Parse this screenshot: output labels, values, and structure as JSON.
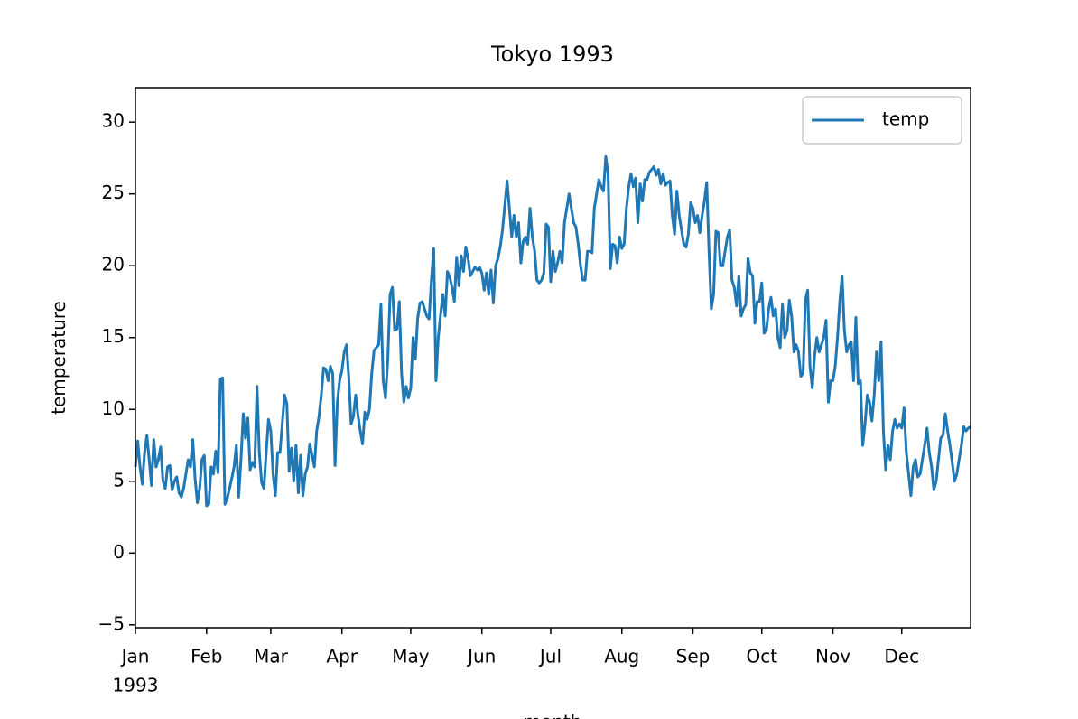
{
  "chart_data": {
    "type": "line",
    "title": "Tokyo 1993",
    "xlabel": "month",
    "ylabel": "temperature",
    "x_year_label": "1993",
    "xlim": [
      0,
      364
    ],
    "xticks": [
      {
        "value": 0,
        "label": "Jan"
      },
      {
        "value": 31,
        "label": "Feb"
      },
      {
        "value": 59,
        "label": "Mar"
      },
      {
        "value": 90,
        "label": "Apr"
      },
      {
        "value": 120,
        "label": "May"
      },
      {
        "value": 151,
        "label": "Jun"
      },
      {
        "value": 181,
        "label": "Jul"
      },
      {
        "value": 212,
        "label": "Aug"
      },
      {
        "value": 243,
        "label": "Sep"
      },
      {
        "value": 273,
        "label": "Oct"
      },
      {
        "value": 304,
        "label": "Nov"
      },
      {
        "value": 334,
        "label": "Dec"
      }
    ],
    "ylim": [
      -5.2,
      32.4
    ],
    "yticks": [
      {
        "value": -5,
        "label": "−5"
      },
      0,
      5,
      10,
      15,
      20,
      25,
      30
    ],
    "grid": false,
    "legend": "upper right",
    "series": [
      {
        "name": "temp",
        "color": "#1f77b4",
        "values": [
          6,
          7.8,
          6,
          4.8,
          7,
          8.2,
          6.5,
          4.7,
          7.9,
          6,
          6.5,
          7.4,
          5,
          4.5,
          6,
          6.1,
          4.4,
          5,
          5.3,
          4.2,
          3.9,
          4.5,
          5.5,
          6.5,
          6,
          7.9,
          5.2,
          3.5,
          4.5,
          6.5,
          6.8,
          3.3,
          3.4,
          6,
          5.5,
          7.1,
          5.6,
          12.1,
          12.2,
          3.4,
          3.8,
          4.5,
          5.2,
          6,
          7.5,
          3.9,
          6.5,
          9.7,
          8,
          9.4,
          5.8,
          6.3,
          6,
          11.6,
          7,
          4.9,
          4.5,
          7,
          9.3,
          8.5,
          5.5,
          4,
          7,
          7,
          9,
          11,
          10.4,
          5.7,
          7.3,
          5,
          7.5,
          4.2,
          6.8,
          4,
          5.5,
          6,
          7.6,
          6.8,
          6,
          8.5,
          9.5,
          11,
          12.9,
          12.8,
          12,
          13,
          12.5,
          6.1,
          10.5,
          12,
          12.7,
          14,
          14.5,
          12.2,
          9,
          9.5,
          11,
          9.6,
          8.5,
          7.6,
          9.8,
          9.3,
          10,
          12.5,
          14.1,
          14.3,
          14.5,
          17.3,
          12,
          10.8,
          13.5,
          18,
          18.5,
          15.5,
          15.6,
          17.5,
          12.5,
          10.5,
          11.6,
          10.8,
          11.5,
          15,
          13.5,
          16.3,
          17.4,
          17.5,
          17,
          16.5,
          16.3,
          19,
          21.2,
          12,
          15,
          16.6,
          18,
          16.5,
          19.6,
          19.2,
          18.5,
          17.5,
          20.6,
          18.6,
          20.7,
          19.6,
          21.3,
          20.5,
          19.3,
          19.6,
          19.9,
          19.7,
          19.9,
          19.5,
          18.3,
          19.5,
          18,
          19.7,
          17.4,
          20,
          20.5,
          21.3,
          22.5,
          24.2,
          25.9,
          24,
          22,
          23.5,
          22,
          23,
          20.2,
          21.7,
          22,
          21.5,
          24,
          22,
          21,
          19,
          18.8,
          19,
          19.5,
          22.9,
          22.7,
          18.9,
          21,
          19.6,
          20.2,
          21,
          20.2,
          23,
          24,
          25,
          24,
          23,
          22.7,
          21.5,
          20,
          19,
          19,
          21,
          21,
          20.9,
          24,
          25,
          26,
          25.5,
          25.2,
          27.6,
          26.4,
          19.8,
          21.5,
          21.4,
          20.2,
          22,
          21.2,
          21.5,
          24,
          25.5,
          26.4,
          25.5,
          26.1,
          23,
          25.7,
          24.5,
          26,
          26,
          26.5,
          26.7,
          26.9,
          26.3,
          26.7,
          25.7,
          26.4,
          25.6,
          25.8,
          25.9,
          23.5,
          22.2,
          25.2,
          23.5,
          22.5,
          21.5,
          21.3,
          22.2,
          24.4,
          24,
          23,
          23.5,
          22.3,
          23.5,
          24.5,
          25.8,
          21,
          17,
          18,
          22.4,
          22.3,
          20,
          20,
          21,
          22,
          22.5,
          19,
          18.5,
          17.2,
          19.3,
          16.5,
          17,
          17.3,
          20.5,
          19.5,
          19.3,
          16,
          17.5,
          17.5,
          18.8,
          15.3,
          15.5,
          17,
          17.8,
          16.5,
          17,
          15,
          14.3,
          17.3,
          15,
          15.5,
          17.6,
          16.5,
          14,
          14.5,
          14,
          12.3,
          12.5,
          17.6,
          18.3,
          13,
          11.5,
          13.7,
          15,
          14,
          14.5,
          15,
          16.2,
          10.5,
          12,
          12,
          13,
          15,
          17.5,
          19.3,
          15.5,
          14,
          14.5,
          14.7,
          12,
          16.4,
          11.8,
          12,
          7.5,
          9,
          11,
          10.5,
          9.2,
          11,
          14,
          12,
          14.7,
          8.5,
          5.8,
          7.5,
          6.5,
          8.5,
          9.3,
          8.7,
          9,
          8.7,
          10.1,
          7,
          5.5,
          4,
          6,
          6.5,
          5.3,
          5.5,
          6.5,
          7.5,
          8.7,
          7,
          6,
          4.4,
          5,
          6.5,
          8,
          8.2,
          9.7,
          8.5,
          7.5,
          6.3,
          5,
          5.5,
          6.5,
          7.5,
          8.8,
          8.5,
          8.7,
          8.8
        ]
      }
    ]
  }
}
